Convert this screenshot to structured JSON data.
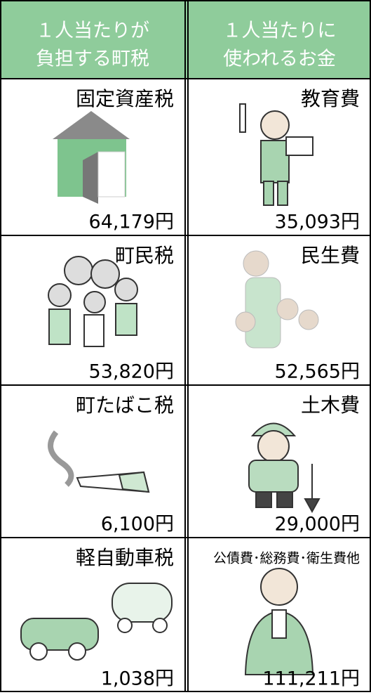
{
  "header": {
    "left": [
      "１人当たりが",
      "負担する町税"
    ],
    "right": [
      "１人当たりに",
      "使われるお金"
    ]
  },
  "rows": [
    {
      "left": {
        "label": "固定資産税",
        "amount": "64,179円"
      },
      "right": {
        "label": "教育費",
        "amount": "35,093円"
      }
    },
    {
      "left": {
        "label": "町民税",
        "amount": "53,820円"
      },
      "right": {
        "label": "民生費",
        "amount": "52,565円"
      }
    },
    {
      "left": {
        "label": "町たばこ税",
        "amount": "6,100円"
      },
      "right": {
        "label": "土木費",
        "amount": "29,000円"
      }
    },
    {
      "left": {
        "label": "軽自動車税",
        "amount": "1,038円"
      },
      "right": {
        "label": "公債費･総務費･衛生費他",
        "amount": "111,211円"
      }
    }
  ]
}
